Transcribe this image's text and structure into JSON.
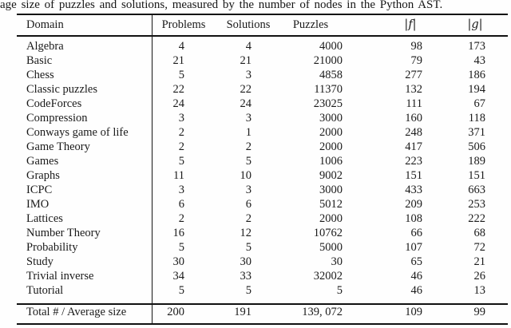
{
  "caption": "age size of puzzles and solutions, measured by the number of nodes in the Python AST.",
  "table": {
    "columns": [
      "Domain",
      "Problems",
      "Solutions",
      "Puzzles",
      "|f|",
      "|g|"
    ],
    "rows": [
      [
        "Algebra",
        "4",
        "4",
        "4000",
        "98",
        "173"
      ],
      [
        "Basic",
        "21",
        "21",
        "21000",
        "79",
        "43"
      ],
      [
        "Chess",
        "5",
        "3",
        "4858",
        "277",
        "186"
      ],
      [
        "Classic puzzles",
        "22",
        "22",
        "11370",
        "132",
        "194"
      ],
      [
        "CodeForces",
        "24",
        "24",
        "23025",
        "111",
        "67"
      ],
      [
        "Compression",
        "3",
        "3",
        "3000",
        "160",
        "118"
      ],
      [
        "Conways game of life",
        "2",
        "1",
        "2000",
        "248",
        "371"
      ],
      [
        "Game Theory",
        "2",
        "2",
        "2000",
        "417",
        "506"
      ],
      [
        "Games",
        "5",
        "5",
        "1006",
        "223",
        "189"
      ],
      [
        "Graphs",
        "11",
        "10",
        "9002",
        "151",
        "151"
      ],
      [
        "ICPC",
        "3",
        "3",
        "3000",
        "433",
        "663"
      ],
      [
        "IMO",
        "6",
        "6",
        "5012",
        "209",
        "253"
      ],
      [
        "Lattices",
        "2",
        "2",
        "2000",
        "108",
        "222"
      ],
      [
        "Number Theory",
        "16",
        "12",
        "10762",
        "66",
        "68"
      ],
      [
        "Probability",
        "5",
        "5",
        "5000",
        "107",
        "72"
      ],
      [
        "Study",
        "30",
        "30",
        "30",
        "65",
        "21"
      ],
      [
        "Trivial inverse",
        "34",
        "33",
        "32002",
        "46",
        "26"
      ],
      [
        "Tutorial",
        "5",
        "5",
        "5",
        "46",
        "13"
      ]
    ],
    "total": [
      "Total # / Average size",
      "200",
      "191",
      "139, 072",
      "109",
      "99"
    ]
  }
}
